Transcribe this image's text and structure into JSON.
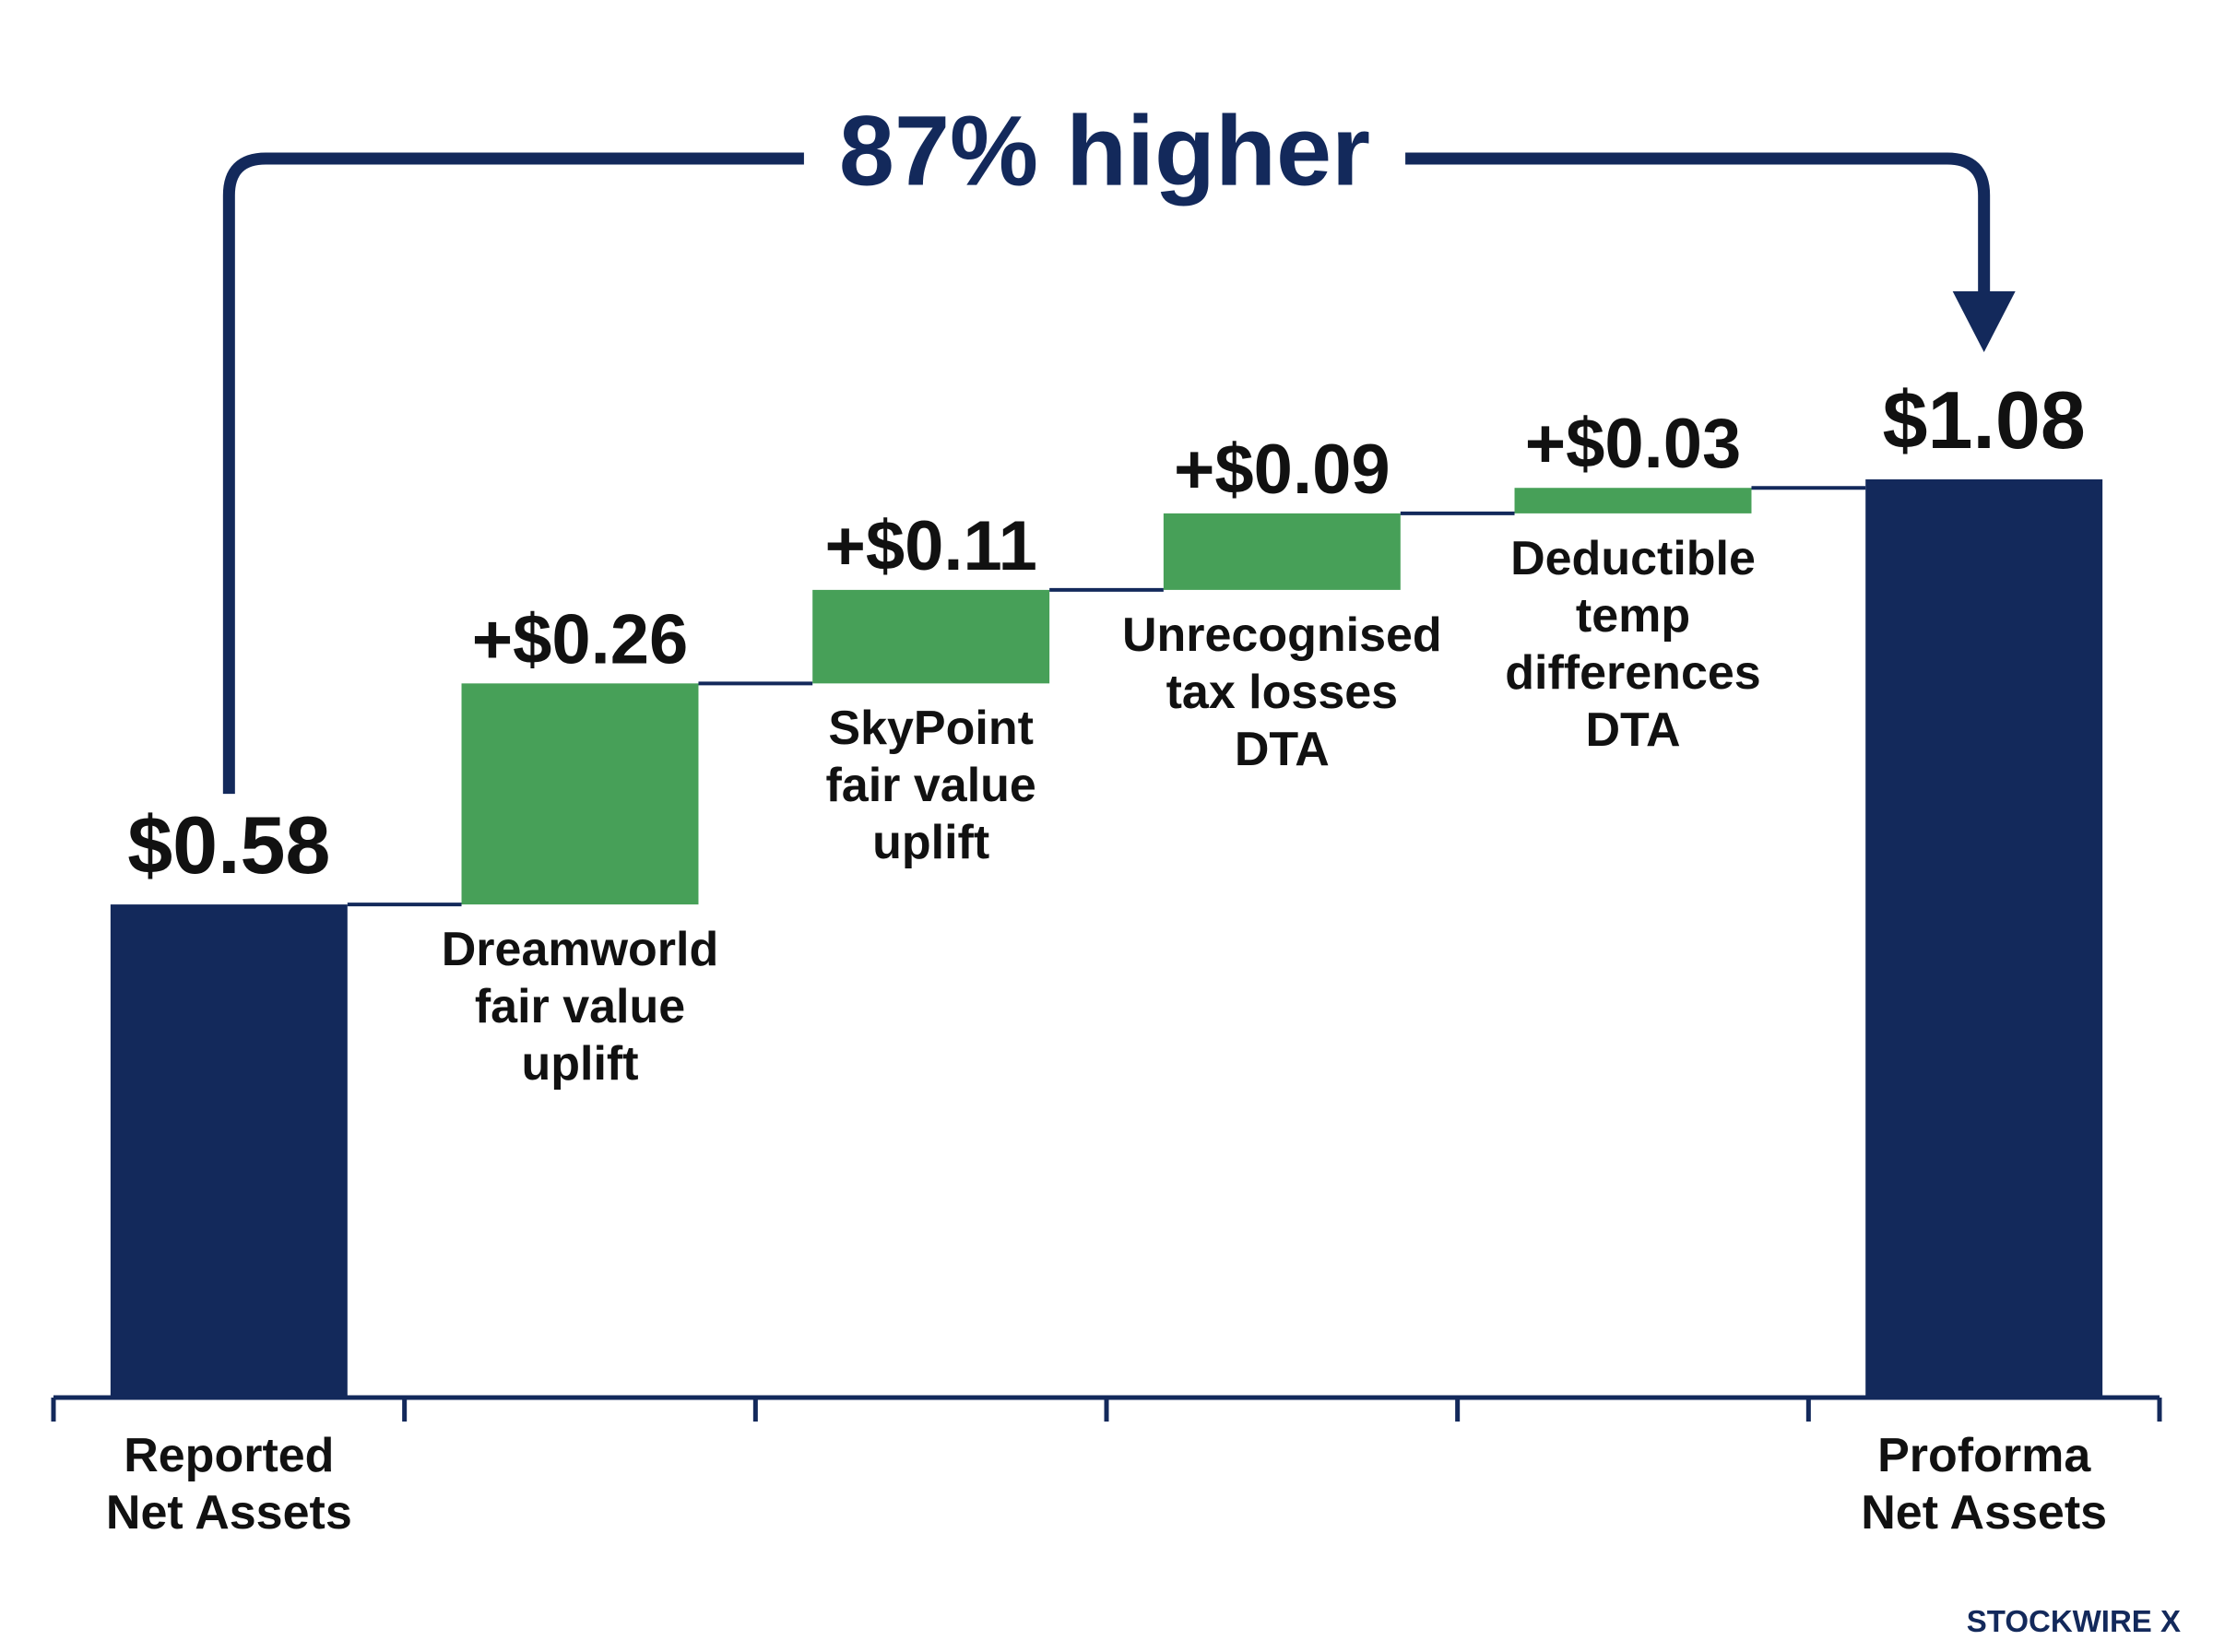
{
  "chart_data": {
    "type": "waterfall",
    "annotation": "87% higher",
    "categories": [
      "Reported\nNet Assets",
      "Dreamworld\nfair value\nuplift",
      "SkyPoint\nfair value\nuplift",
      "Unrecognised\ntax losses\nDTA",
      "Deductible\ntemp\ndifferences\nDTA",
      "Proforma\nNet Assets"
    ],
    "measures": [
      "total",
      "relative",
      "relative",
      "relative",
      "relative",
      "total"
    ],
    "values": [
      0.58,
      0.26,
      0.11,
      0.09,
      0.03,
      1.08
    ],
    "value_labels": [
      "$0.58",
      "+$0.26",
      "+$0.11",
      "+$0.09",
      "+$0.03",
      "$1.08"
    ],
    "colors": {
      "total": "#13295b",
      "relative": "#47a058"
    },
    "brand": "STOCKWIRE X"
  }
}
